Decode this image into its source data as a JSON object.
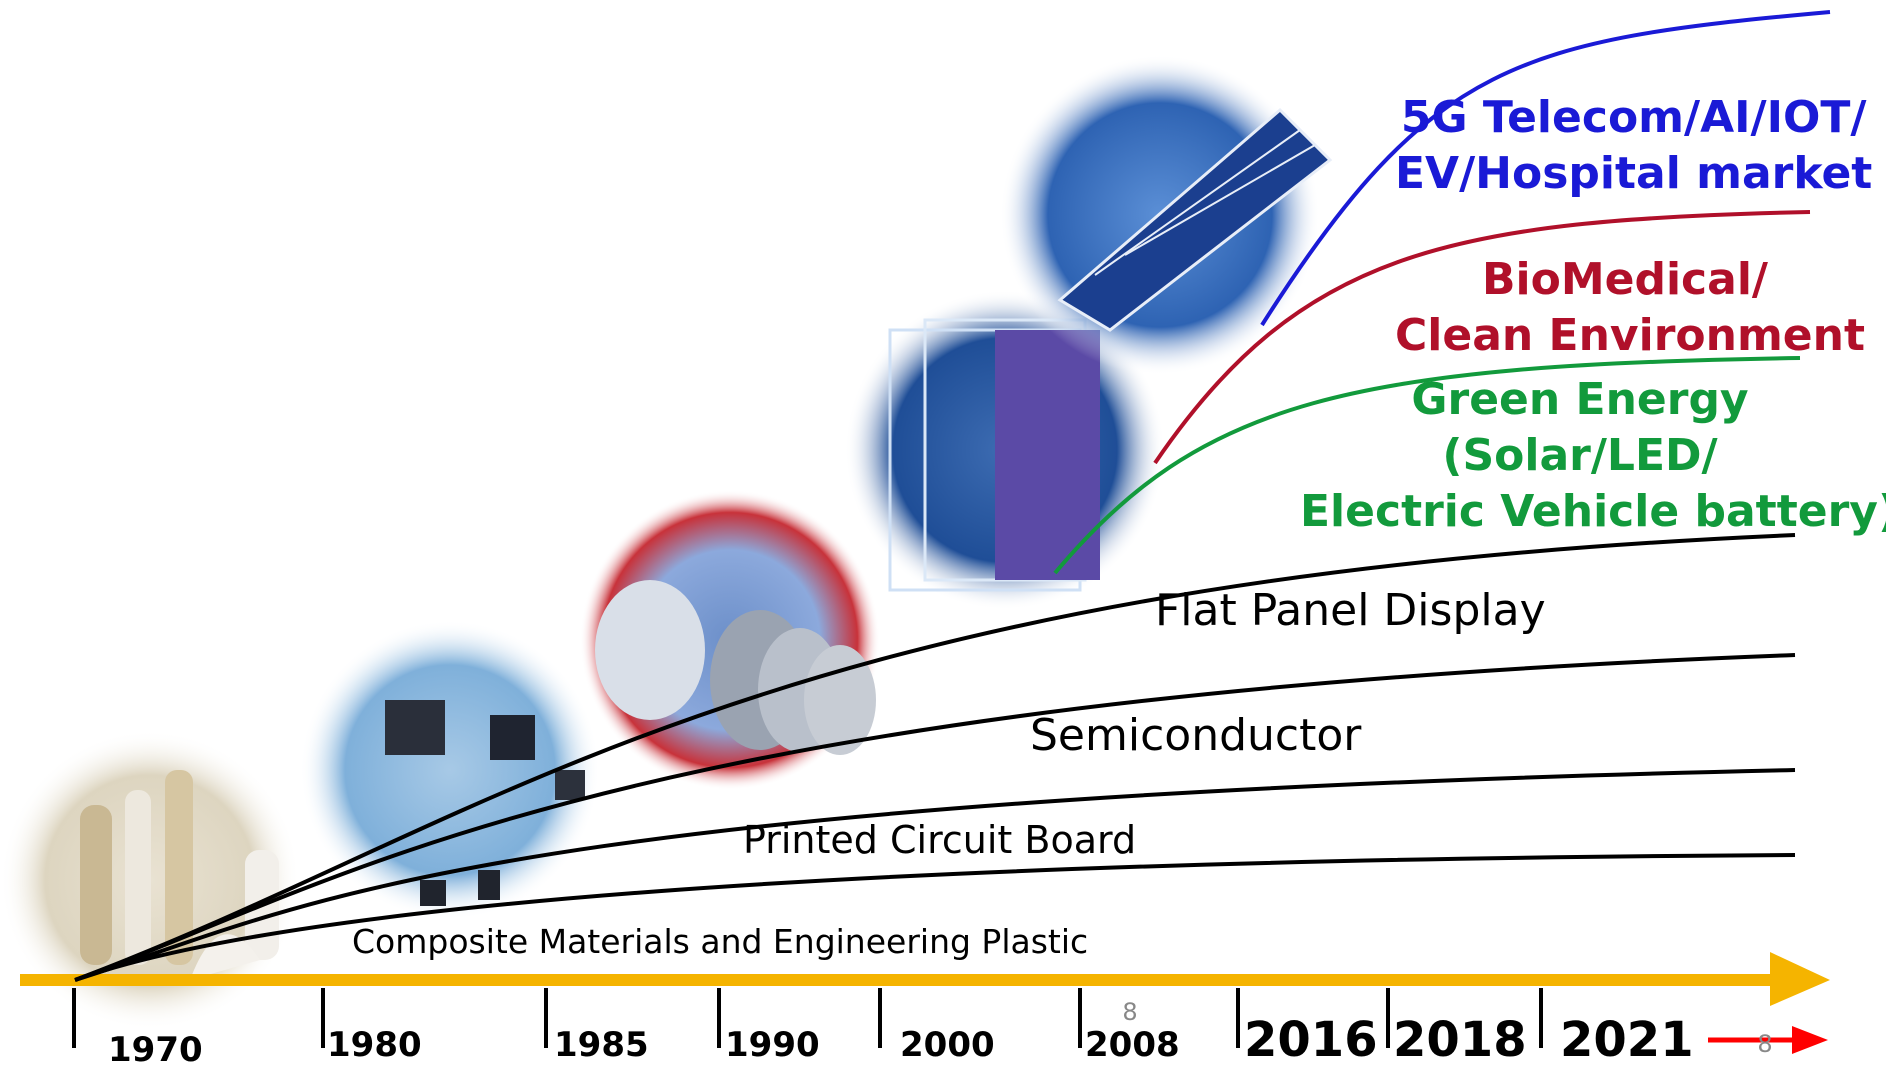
{
  "markets": {
    "telecom": {
      "line1": "5G Telecom/AI/IOT/",
      "line2": "EV/Hospital market"
    },
    "biomedical": {
      "line1": "BioMedical/",
      "line2": "Clean Environment"
    },
    "green": {
      "line1": "Green Energy",
      "line2": "(Solar/LED/",
      "line3": "Electric Vehicle battery)"
    },
    "fpd": "Flat Panel Display",
    "semiconductor": "Semiconductor",
    "pcb": "Printed Circuit Board",
    "composite": "Composite Materials and Engineering Plastic"
  },
  "timeline": {
    "years": [
      "1970",
      "1980",
      "1985",
      "1990",
      "2000",
      "2008",
      "2016",
      "2018",
      "2021"
    ],
    "page_marks": [
      "8",
      "8"
    ]
  },
  "colors": {
    "telecom": "#1a1ad6",
    "biomedical": "#b0102a",
    "green": "#129a3c",
    "curve": "#000000",
    "axis": "#f5b400",
    "arrow": "#ff0000"
  }
}
